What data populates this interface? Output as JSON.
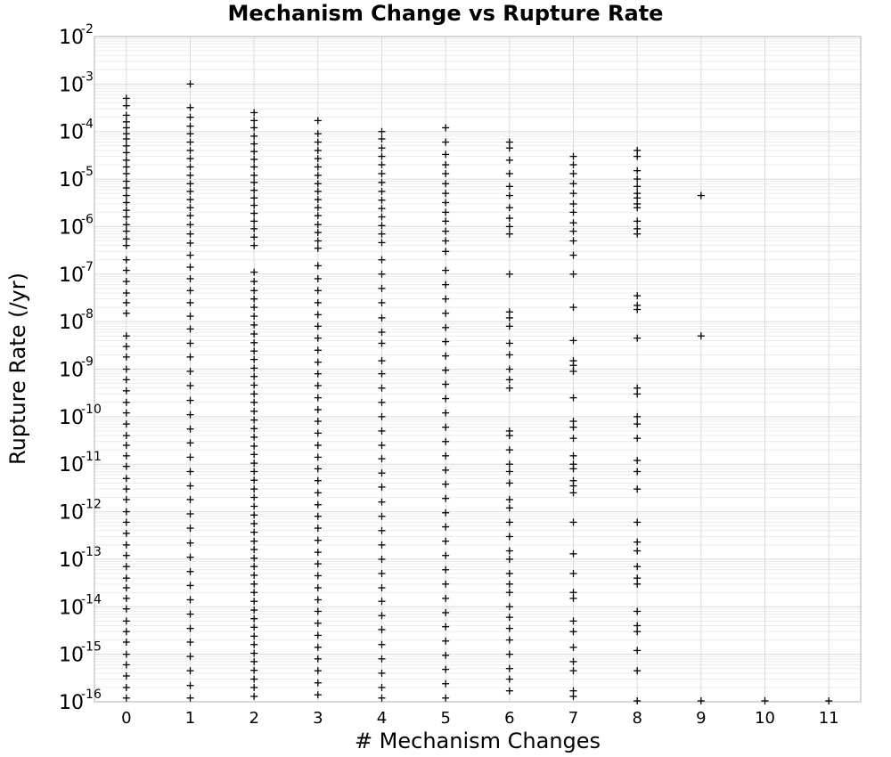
{
  "chart_data": {
    "type": "scatter",
    "title": "Mechanism Change vs Rupture Rate",
    "xlabel": "# Mechanism Changes",
    "ylabel": "Rupture Rate (/yr)",
    "xlim": [
      -0.5,
      11.5
    ],
    "ylim": [
      1e-16,
      0.01
    ],
    "y_scale": "log",
    "x_ticks": [
      "0",
      "1",
      "2",
      "3",
      "4",
      "5",
      "6",
      "7",
      "8",
      "9",
      "10",
      "11"
    ],
    "y_ticks": [
      {
        "base": "10",
        "exp": "-2"
      },
      {
        "base": "10",
        "exp": "-3"
      },
      {
        "base": "10",
        "exp": "-4"
      },
      {
        "base": "10",
        "exp": "-5"
      },
      {
        "base": "10",
        "exp": "-6"
      },
      {
        "base": "10",
        "exp": "-7"
      },
      {
        "base": "10",
        "exp": "-8"
      },
      {
        "base": "10",
        "exp": "-9"
      },
      {
        "base": "10",
        "exp": "-10"
      },
      {
        "base": "10",
        "exp": "-11"
      },
      {
        "base": "10",
        "exp": "-12"
      },
      {
        "base": "10",
        "exp": "-13"
      },
      {
        "base": "10",
        "exp": "-14"
      },
      {
        "base": "10",
        "exp": "-15"
      },
      {
        "base": "10",
        "exp": "-16"
      }
    ],
    "grid": true,
    "marker": "plus",
    "marker_color": "#000000",
    "series": [
      {
        "x": 0,
        "y": [
          0.0005,
          0.00035,
          0.00022,
          0.00016,
          0.00012,
          9e-05,
          7e-05,
          5e-05,
          3.6e-05,
          2.5e-05,
          1.8e-05,
          1.3e-05,
          9e-06,
          6.5e-06,
          4.5e-06,
          3.2e-06,
          2.2e-06,
          1.6e-06,
          1.1e-06,
          8e-07,
          5.5e-07,
          4e-07,
          2e-07,
          1.2e-07,
          7e-08,
          4e-08,
          2.5e-08,
          1.5e-08,
          5e-09,
          3e-09,
          1.8e-09,
          1e-09,
          6e-10,
          3.5e-10,
          2e-10,
          1.2e-10,
          7e-11,
          4e-11,
          2.5e-11,
          1.5e-11,
          9e-12,
          5e-12,
          3e-12,
          1.8e-12,
          1e-12,
          6e-13,
          3.5e-13,
          2e-13,
          1.2e-13,
          7e-14,
          4e-14,
          2.5e-14,
          1.5e-14,
          9e-15,
          5e-15,
          3e-15,
          1.8e-15,
          1e-15,
          6e-16,
          3.5e-16,
          2e-16,
          1.2e-16
        ]
      },
      {
        "x": 1,
        "y": [
          0.001,
          0.00032,
          0.0002,
          0.00013,
          9e-05,
          6e-05,
          4e-05,
          2.7e-05,
          1.8e-05,
          1.2e-05,
          8e-06,
          5.5e-06,
          3.7e-06,
          2.5e-06,
          1.7e-06,
          1.1e-06,
          7e-07,
          4.5e-07,
          2.5e-07,
          1.4e-07,
          8e-08,
          4.5e-08,
          2.5e-08,
          1.3e-08,
          7e-09,
          3.5e-09,
          1.8e-09,
          9e-10,
          4.5e-10,
          2.2e-10,
          1.1e-10,
          5.5e-11,
          2.8e-11,
          1.4e-11,
          7e-12,
          3.5e-12,
          1.8e-12,
          9e-13,
          4.5e-13,
          2.2e-13,
          1.1e-13,
          5.5e-14,
          2.8e-14,
          1.4e-14,
          7e-15,
          3.5e-15,
          1.8e-15,
          9e-16,
          4.5e-16,
          2.2e-16,
          1.2e-16
        ]
      },
      {
        "x": 2,
        "y": [
          0.00025,
          0.00017,
          0.00012,
          8e-05,
          5.5e-05,
          3.8e-05,
          2.6e-05,
          1.8e-05,
          1.2e-05,
          8.5e-06,
          5.8e-06,
          4e-06,
          2.8e-06,
          1.9e-06,
          1.3e-06,
          9e-07,
          6e-07,
          4e-07,
          1.1e-07,
          7e-08,
          4.5e-08,
          3e-08,
          2e-08,
          1.3e-08,
          8.5e-09,
          5.5e-09,
          3.6e-09,
          2.4e-09,
          1.6e-09,
          1.05e-09,
          7e-10,
          4.6e-10,
          3e-10,
          2e-10,
          1.3e-10,
          8.5e-11,
          5.6e-11,
          3.7e-11,
          2.4e-11,
          1.6e-11,
          1.05e-11,
          7e-12,
          4.6e-12,
          3e-12,
          2e-12,
          1.3e-12,
          8.5e-13,
          5.6e-13,
          3.7e-13,
          2.4e-13,
          1.6e-13,
          1.05e-13,
          7e-14,
          4.6e-14,
          3e-14,
          2e-14,
          1.3e-14,
          8.5e-15,
          5.6e-15,
          3.7e-15,
          2.4e-15,
          1.6e-15,
          1.05e-15,
          7e-16,
          4.6e-16,
          3e-16,
          2e-16,
          1.3e-16
        ]
      },
      {
        "x": 3,
        "y": [
          0.00017,
          9e-05,
          6e-05,
          4e-05,
          2.7e-05,
          1.8e-05,
          1.2e-05,
          8e-06,
          5.5e-06,
          3.7e-06,
          2.5e-06,
          1.7e-06,
          1.1e-06,
          7.5e-07,
          5e-07,
          3.5e-07,
          1.5e-07,
          8e-08,
          4.5e-08,
          2.5e-08,
          1.4e-08,
          8e-09,
          4.5e-09,
          2.5e-09,
          1.4e-09,
          8e-10,
          4.5e-10,
          2.5e-10,
          1.4e-10,
          8e-11,
          4.5e-11,
          2.5e-11,
          1.4e-11,
          8e-12,
          4.5e-12,
          2.5e-12,
          1.4e-12,
          8e-13,
          4.5e-13,
          2.5e-13,
          1.4e-13,
          8e-14,
          4.5e-14,
          2.5e-14,
          1.4e-14,
          8e-15,
          4.5e-15,
          2.5e-15,
          1.4e-15,
          8e-16,
          4.5e-16,
          2.5e-16,
          1.4e-16
        ]
      },
      {
        "x": 4,
        "y": [
          0.0001,
          7e-05,
          4.5e-05,
          3e-05,
          2e-05,
          1.3e-05,
          8.5e-06,
          5.5e-06,
          3.6e-06,
          2.4e-06,
          1.6e-06,
          1.05e-06,
          7e-07,
          4.6e-07,
          2e-07,
          1e-07,
          5e-08,
          2.5e-08,
          1.2e-08,
          6e-09,
          3.5e-09,
          1.5e-09,
          8e-10,
          4e-10,
          2e-10,
          1e-10,
          5e-11,
          2.5e-11,
          1.3e-11,
          6.5e-12,
          3.3e-12,
          1.6e-12,
          8e-13,
          4e-13,
          2e-13,
          1e-13,
          5e-14,
          2.5e-14,
          1.3e-14,
          6.5e-15,
          3.3e-15,
          1.6e-15,
          8e-16,
          4e-16,
          2e-16,
          1.2e-16
        ]
      },
      {
        "x": 5,
        "y": [
          0.00012,
          6e-05,
          3.3e-05,
          2e-05,
          1.3e-05,
          8e-06,
          5e-06,
          3.2e-06,
          2e-06,
          1.3e-06,
          8e-07,
          5e-07,
          3e-07,
          1.2e-07,
          6e-08,
          3e-08,
          1.5e-08,
          7.5e-09,
          3.8e-09,
          1.9e-09,
          9.5e-10,
          4.8e-10,
          2.4e-10,
          1.2e-10,
          6e-11,
          3e-11,
          1.5e-11,
          7.5e-12,
          3.8e-12,
          1.9e-12,
          9.5e-13,
          4.8e-13,
          2.4e-13,
          1.2e-13,
          6e-14,
          3e-14,
          1.5e-14,
          7.5e-15,
          3.8e-15,
          1.9e-15,
          9.5e-16,
          4.8e-16,
          2.4e-16,
          1.2e-16
        ]
      },
      {
        "x": 6,
        "y": [
          6e-05,
          4.5e-05,
          2.5e-05,
          1.3e-05,
          7e-06,
          4.5e-06,
          2.5e-06,
          1.5e-06,
          1e-06,
          7e-07,
          1e-07,
          1.6e-08,
          1.2e-08,
          8e-09,
          3.5e-09,
          2e-09,
          1e-09,
          6e-10,
          4e-10,
          5e-11,
          4e-11,
          2e-11,
          1e-11,
          7e-12,
          4e-12,
          1.8e-12,
          1.2e-12,
          6e-13,
          3e-13,
          1.5e-13,
          1e-13,
          5e-14,
          3e-14,
          2e-14,
          1e-14,
          6e-15,
          3.5e-15,
          2e-15,
          1e-15,
          5e-16,
          3e-16,
          1.7e-16
        ]
      },
      {
        "x": 7,
        "y": [
          3e-05,
          2e-05,
          1.3e-05,
          8e-06,
          5e-06,
          3e-06,
          2e-06,
          1.2e-06,
          8e-07,
          5e-07,
          2.5e-07,
          1e-07,
          2e-08,
          4e-09,
          1.5e-09,
          1.2e-09,
          9e-10,
          2.5e-10,
          8e-11,
          6e-11,
          3.5e-11,
          1.5e-11,
          1e-11,
          8e-12,
          4.5e-12,
          3.5e-12,
          2.5e-12,
          6e-13,
          1.3e-13,
          5e-14,
          2e-14,
          1.5e-14,
          5e-15,
          3e-15,
          1.4e-15,
          7e-16,
          4.5e-16,
          1.7e-16,
          1.3e-16
        ]
      },
      {
        "x": 8,
        "y": [
          4e-05,
          3e-05,
          1.5e-05,
          1e-05,
          7e-06,
          5e-06,
          4e-06,
          3e-06,
          2.5e-06,
          1.3e-06,
          9e-07,
          7e-07,
          3.5e-08,
          2.2e-08,
          1.8e-08,
          4.5e-09,
          4e-10,
          3e-10,
          1e-10,
          7e-11,
          3.5e-11,
          1.2e-11,
          7e-12,
          3e-12,
          6e-13,
          2.3e-13,
          1.5e-13,
          7e-14,
          4e-14,
          3e-14,
          8e-15,
          4e-15,
          3e-15,
          1.2e-15,
          4.5e-16,
          1e-16
        ]
      },
      {
        "x": 9,
        "y": [
          4.5e-06,
          5e-09,
          1e-16
        ]
      },
      {
        "x": 10,
        "y": [
          1e-16
        ]
      },
      {
        "x": 11,
        "y": [
          1e-16
        ]
      }
    ]
  }
}
